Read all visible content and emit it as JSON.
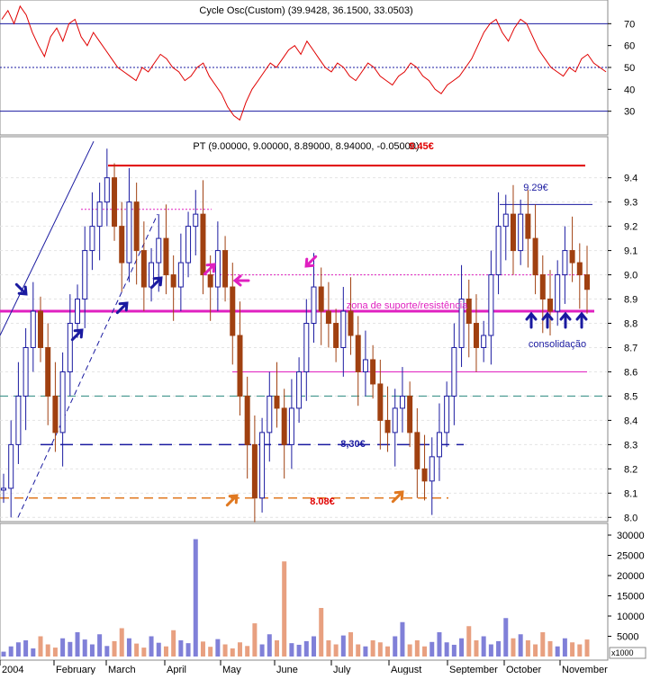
{
  "indicator_panel": {
    "title": "Cycle Osc(Custom) (39.9428, 36.1500, 33.0503)",
    "y_ticks": [
      30,
      40,
      50,
      60,
      70
    ],
    "upper_line": 70,
    "mid_line": 50,
    "lower_line": 30
  },
  "price_panel": {
    "title": "PT (9.00000, 9.00000, 8.89000, 8.94000, -0.05000)",
    "y_ticks": [
      "8.0",
      "8.1",
      "8.2",
      "8.3",
      "8.4",
      "8.5",
      "8.6",
      "8.7",
      "8.8",
      "8.9",
      "9.0",
      "9.1",
      "9.2",
      "9.3",
      "9.4"
    ],
    "annotations": {
      "top_level": "9.45€",
      "high_level": "9.29€",
      "zone_label": "zona de suporte/resistência",
      "consolidation": "consolidação",
      "mid_level": "8,30€",
      "low_level": "8.08€"
    },
    "levels": {
      "top": 9.45,
      "high": 9.29,
      "pink_upper": 9.0,
      "zone": 8.85,
      "pink_lower": 8.6,
      "teal": 8.5,
      "support": 8.3,
      "bottom": 8.08
    }
  },
  "volume_panel": {
    "y_ticks": [
      "5000",
      "10000",
      "15000",
      "20000",
      "25000",
      "30000"
    ],
    "unit_label": "x1000"
  },
  "x_axis": {
    "labels": [
      "2004",
      "February",
      "March",
      "April",
      "May",
      "June",
      "July",
      "August",
      "September",
      "October",
      "November"
    ]
  },
  "colors": {
    "oscillator": "#e00000",
    "up_bar": "#1a1aa0",
    "down_bar": "#a04010",
    "zone": "#e020c0",
    "top": "#e00000",
    "support": "#1a1aa0",
    "bottom": "#e07820",
    "teal": "#2a8a80",
    "vol_up": "#8080d8",
    "vol_down": "#e8a080"
  },
  "chart_data": [
    {
      "type": "line",
      "name": "Cycle Osc(Custom)",
      "ylim": [
        20,
        80
      ],
      "values": [
        72,
        76,
        70,
        78,
        74,
        66,
        60,
        55,
        64,
        68,
        62,
        70,
        72,
        64,
        60,
        66,
        62,
        58,
        54,
        50,
        48,
        46,
        44,
        50,
        48,
        52,
        56,
        54,
        50,
        48,
        44,
        46,
        50,
        52,
        46,
        42,
        38,
        32,
        28,
        26,
        34,
        40,
        44,
        48,
        52,
        50,
        54,
        58,
        60,
        56,
        62,
        58,
        54,
        50,
        48,
        52,
        50,
        46,
        44,
        48,
        52,
        50,
        46,
        44,
        42,
        46,
        48,
        52,
        50,
        46,
        44,
        40,
        38,
        42,
        44,
        46,
        50,
        54,
        60,
        66,
        70,
        72,
        66,
        62,
        68,
        72,
        70,
        64,
        58,
        54,
        50,
        48,
        46,
        50,
        48,
        54,
        56,
        52,
        50,
        48
      ]
    },
    {
      "type": "line",
      "name": "PT",
      "ylim": [
        7.99,
        9.51
      ],
      "values": [
        8.12,
        8.3,
        8.5,
        8.7,
        8.85,
        8.7,
        8.5,
        8.35,
        8.6,
        8.8,
        8.9,
        9.1,
        9.2,
        9.3,
        9.4,
        9.2,
        9.05,
        9.3,
        9.1,
        8.95,
        9.05,
        9.15,
        9.0,
        8.95,
        9.05,
        9.2,
        9.25,
        9.0,
        8.95,
        9.1,
        8.95,
        8.75,
        8.5,
        8.3,
        8.08,
        8.35,
        8.5,
        8.45,
        8.3,
        8.45,
        8.6,
        8.8,
        8.95,
        8.85,
        8.8,
        8.7,
        8.85,
        8.75,
        8.6,
        8.65,
        8.55,
        8.4,
        8.35,
        8.45,
        8.5,
        8.35,
        8.2,
        8.15,
        8.25,
        8.35,
        8.5,
        8.7,
        8.9,
        8.8,
        8.7,
        8.75,
        9.0,
        9.2,
        9.25,
        9.1,
        9.25,
        9.15,
        9.0,
        8.9,
        8.85,
        9.0,
        9.1,
        9.05,
        9.0,
        8.94
      ]
    },
    {
      "type": "bar",
      "name": "Volume",
      "ylim": [
        0,
        32000
      ],
      "values": [
        1200,
        2500,
        3500,
        4000,
        2000,
        5000,
        3000,
        2200,
        4500,
        3600,
        6000,
        4200,
        3000,
        5500,
        2600,
        3800,
        7000,
        4500,
        3200,
        2200,
        5000,
        3400,
        2500,
        6500,
        4000,
        3300,
        29000,
        3700,
        2400,
        4300,
        3000,
        2000,
        3500,
        2600,
        8200,
        3000,
        5500,
        4000,
        23500,
        3300,
        2900,
        3800,
        5000,
        12000,
        4000,
        3000,
        5200,
        6000,
        3000,
        2500,
        4000,
        3500,
        2500,
        5000,
        8500,
        3000,
        4000,
        2500,
        3600,
        6000,
        3500,
        2900,
        4500,
        7500,
        4000,
        5000,
        3000,
        3800,
        9500,
        4500,
        5500,
        4000,
        3000,
        6000,
        3800,
        2500,
        4500,
        3500,
        3000,
        4200
      ]
    }
  ]
}
